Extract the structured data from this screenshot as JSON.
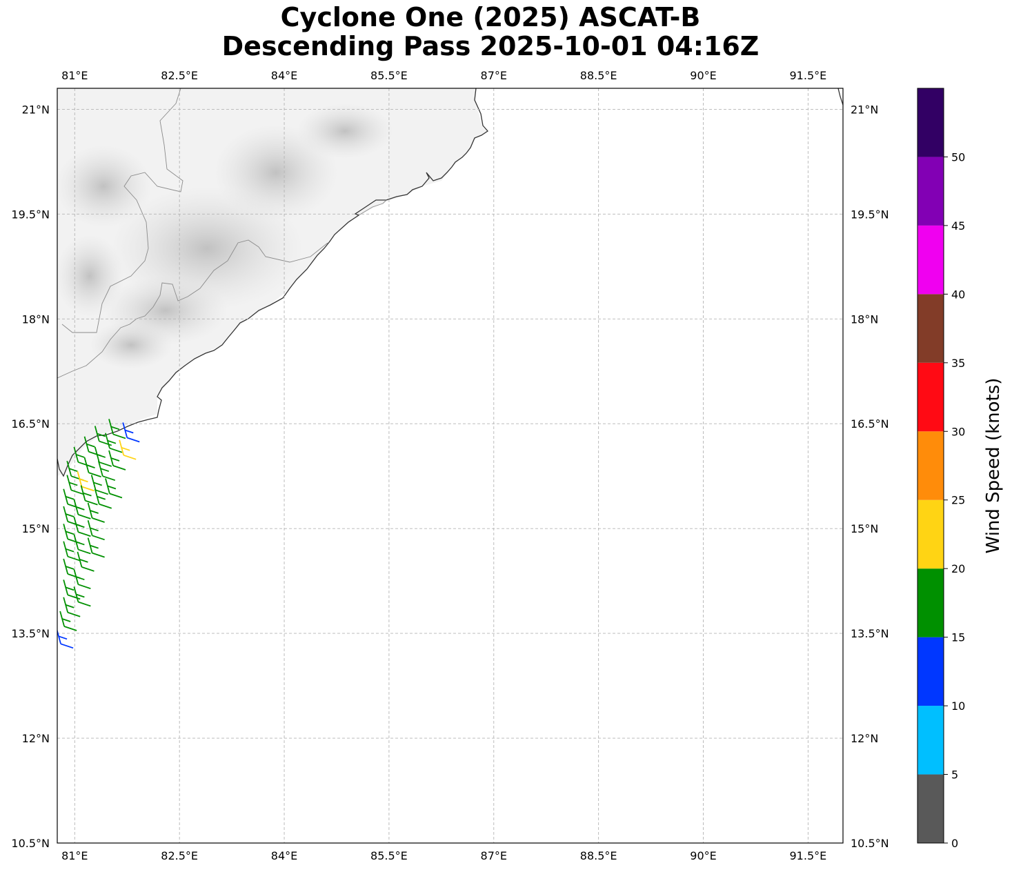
{
  "title": {
    "line1": "Cyclone One (2025) ASCAT-B",
    "line2": "Descending Pass 2025-10-01 04:16Z"
  },
  "map": {
    "lon_range": [
      80.75,
      92.0
    ],
    "lat_range": [
      10.5,
      21.3
    ],
    "lon_ticks": [
      {
        "value": 81.0,
        "label": "81°E"
      },
      {
        "value": 82.5,
        "label": "82.5°E"
      },
      {
        "value": 84.0,
        "label": "84°E"
      },
      {
        "value": 85.5,
        "label": "85.5°E"
      },
      {
        "value": 87.0,
        "label": "87°E"
      },
      {
        "value": 88.5,
        "label": "88.5°E"
      },
      {
        "value": 90.0,
        "label": "90°E"
      },
      {
        "value": 91.5,
        "label": "91.5°E"
      }
    ],
    "lat_ticks": [
      {
        "value": 21.0,
        "label": "21°N"
      },
      {
        "value": 19.5,
        "label": "19.5°N"
      },
      {
        "value": 18.0,
        "label": "18°N"
      },
      {
        "value": 16.5,
        "label": "16.5°N"
      },
      {
        "value": 15.0,
        "label": "15°N"
      },
      {
        "value": 13.5,
        "label": "13.5°N"
      },
      {
        "value": 12.0,
        "label": "12°N"
      },
      {
        "value": 10.5,
        "label": "10.5°N"
      }
    ],
    "gridlines": true,
    "land_shading": "grayscale terrain"
  },
  "colorbar": {
    "label": "Wind Speed (knots)",
    "bins": [
      {
        "from": 0,
        "to": 5,
        "color": "#595959"
      },
      {
        "from": 5,
        "to": 10,
        "color": "#00bfff"
      },
      {
        "from": 10,
        "to": 15,
        "color": "#0037ff"
      },
      {
        "from": 15,
        "to": 20,
        "color": "#009000"
      },
      {
        "from": 20,
        "to": 25,
        "color": "#ffd414"
      },
      {
        "from": 25,
        "to": 30,
        "color": "#ff8c0a"
      },
      {
        "from": 30,
        "to": 35,
        "color": "#ff0a14"
      },
      {
        "from": 35,
        "to": 40,
        "color": "#823c28"
      },
      {
        "from": 40,
        "to": 45,
        "color": "#f000f0"
      },
      {
        "from": 45,
        "to": 50,
        "color": "#8200b4"
      },
      {
        "from": 50,
        "to": 55,
        "color": "#320064"
      }
    ],
    "tick_labels": [
      "0",
      "5",
      "10",
      "15",
      "20",
      "25",
      "30",
      "35",
      "40",
      "45",
      "50"
    ]
  },
  "wind_barbs": [
    {
      "lon": 81.55,
      "lat": 16.35,
      "knots": 17
    },
    {
      "lon": 81.75,
      "lat": 16.3,
      "knots": 12
    },
    {
      "lon": 81.35,
      "lat": 16.25,
      "knots": 18
    },
    {
      "lon": 81.5,
      "lat": 16.15,
      "knots": 17
    },
    {
      "lon": 81.7,
      "lat": 16.05,
      "knots": 21
    },
    {
      "lon": 81.2,
      "lat": 16.1,
      "knots": 17
    },
    {
      "lon": 81.35,
      "lat": 15.95,
      "knots": 18
    },
    {
      "lon": 81.55,
      "lat": 15.9,
      "knots": 17
    },
    {
      "lon": 81.05,
      "lat": 15.95,
      "knots": 17
    },
    {
      "lon": 81.2,
      "lat": 15.8,
      "knots": 16
    },
    {
      "lon": 81.4,
      "lat": 15.75,
      "knots": 17
    },
    {
      "lon": 80.95,
      "lat": 15.75,
      "knots": 17
    },
    {
      "lon": 81.1,
      "lat": 15.6,
      "knots": 21
    },
    {
      "lon": 81.3,
      "lat": 15.55,
      "knots": 18
    },
    {
      "lon": 81.5,
      "lat": 15.5,
      "knots": 16
    },
    {
      "lon": 80.95,
      "lat": 15.55,
      "knots": 17
    },
    {
      "lon": 81.15,
      "lat": 15.4,
      "knots": 17
    },
    {
      "lon": 81.35,
      "lat": 15.35,
      "knots": 17
    },
    {
      "lon": 80.9,
      "lat": 15.35,
      "knots": 17
    },
    {
      "lon": 81.05,
      "lat": 15.2,
      "knots": 17
    },
    {
      "lon": 81.25,
      "lat": 15.15,
      "knots": 17
    },
    {
      "lon": 80.9,
      "lat": 15.1,
      "knots": 16
    },
    {
      "lon": 81.05,
      "lat": 14.95,
      "knots": 17
    },
    {
      "lon": 81.25,
      "lat": 14.9,
      "knots": 18
    },
    {
      "lon": 80.9,
      "lat": 14.85,
      "knots": 17
    },
    {
      "lon": 81.05,
      "lat": 14.7,
      "knots": 17
    },
    {
      "lon": 81.25,
      "lat": 14.65,
      "knots": 16
    },
    {
      "lon": 80.9,
      "lat": 14.6,
      "knots": 17
    },
    {
      "lon": 81.1,
      "lat": 14.45,
      "knots": 17
    },
    {
      "lon": 80.9,
      "lat": 14.35,
      "knots": 16
    },
    {
      "lon": 81.05,
      "lat": 14.2,
      "knots": 17
    },
    {
      "lon": 80.9,
      "lat": 14.05,
      "knots": 17
    },
    {
      "lon": 81.05,
      "lat": 13.95,
      "knots": 16
    },
    {
      "lon": 80.9,
      "lat": 13.8,
      "knots": 17
    },
    {
      "lon": 80.85,
      "lat": 13.6,
      "knots": 15
    },
    {
      "lon": 80.8,
      "lat": 13.35,
      "knots": 12
    }
  ]
}
